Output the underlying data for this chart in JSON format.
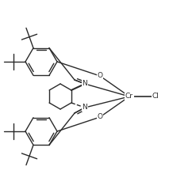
{
  "bg_color": "#ffffff",
  "line_color": "#2a2a2a",
  "line_width": 1.0,
  "text_color": "#2a2a2a",
  "figsize": [
    2.13,
    2.44
  ],
  "dpi": 100,
  "font_size": 6.5,
  "xlim": [
    0,
    213
  ],
  "ylim": [
    0,
    244
  ]
}
